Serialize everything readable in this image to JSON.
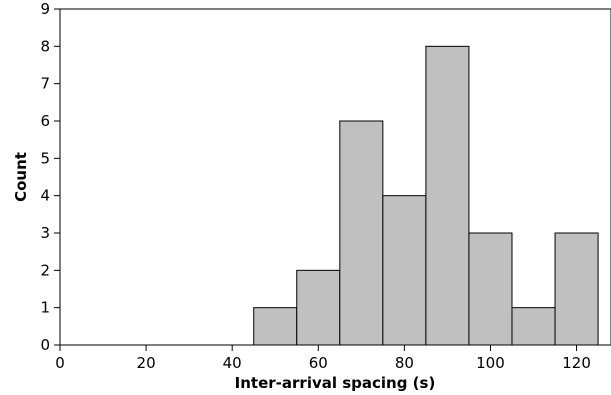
{
  "chart_data": {
    "type": "bar",
    "subtype": "histogram",
    "title": "",
    "xlabel": "Inter-arrival spacing (s)",
    "ylabel": "Count",
    "xlim": [
      0,
      128
    ],
    "ylim": [
      0,
      9
    ],
    "x_ticks": [
      0,
      20,
      40,
      60,
      80,
      100,
      120
    ],
    "y_ticks": [
      0,
      1,
      2,
      3,
      4,
      5,
      6,
      7,
      8,
      9
    ],
    "bin_edges": [
      45,
      55,
      65,
      75,
      85,
      95,
      105,
      115,
      125
    ],
    "values": [
      1,
      2,
      6,
      4,
      8,
      3,
      1,
      3
    ],
    "grid": false,
    "legend": "none",
    "colors": {
      "bar_fill": "#c0c0c0",
      "bar_stroke": "#000000",
      "axis": "#000000",
      "background": "#ffffff"
    }
  }
}
